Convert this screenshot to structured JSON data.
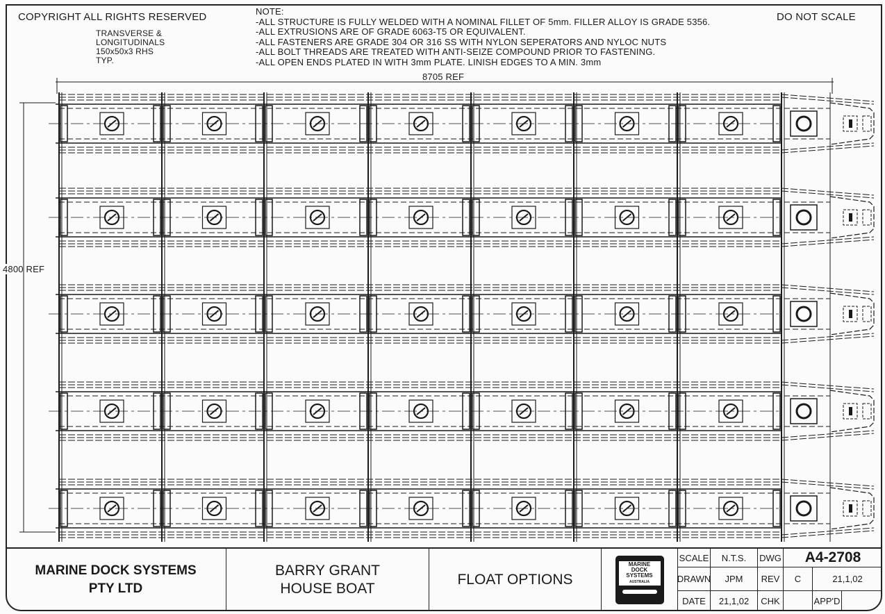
{
  "header": {
    "copyright": "COPYRIGHT ALL RIGHTS RESERVED",
    "scale_note": "DO NOT SCALE",
    "member_note": [
      "TRANSVERSE &",
      "LONGITUDINALS",
      "150x50x3 RHS",
      "TYP."
    ]
  },
  "notes": {
    "heading": "NOTE:",
    "items": [
      "-ALL STRUCTURE IS FULLY WELDED WITH A NOMINAL FILLET OF 5mm. FILLER ALLOY IS GRADE 5356.",
      "-ALL EXTRUSIONS ARE OF GRADE 6063-T5 OR EQUIVALENT.",
      "-ALL FASTENERS ARE GRADE 304 OR 316 SS WITH NYLON SEPERATORS AND NYLOC NUTS",
      "-ALL BOLT THREADS ARE TREATED WITH ANTI-SEIZE COMPOUND PRIOR TO FASTENING.",
      "-ALL OPEN ENDS PLATED IN WITH 3mm PLATE. LINISH EDGES TO A MIN. 3mm"
    ]
  },
  "dimensions": {
    "length": "8705 REF",
    "width": "4800 REF"
  },
  "title_block": {
    "company": [
      "MARINE DOCK SYSTEMS",
      "PTY LTD"
    ],
    "client": [
      "BARRY GRANT",
      "HOUSE BOAT"
    ],
    "title": "FLOAT OPTIONS",
    "logo": [
      "MARINE",
      "DOCK",
      "SYSTEMS",
      "AUSTRALIA"
    ],
    "scale_label": "SCALE",
    "scale": "N.T.S.",
    "drawn_label": "DRAWN",
    "drawn": "JPM",
    "date_label": "DATE",
    "date": "21,1,02",
    "dwg_label": "DWG",
    "dwg": "A4-2708",
    "rev_label": "REV",
    "rev": "C",
    "rev_date": "21,1,02",
    "chk_label": "CHK",
    "chk": "",
    "appd_label": "APP'D",
    "appd": ""
  },
  "colors": {
    "ink": "#1a1a1a",
    "paper": "#fbfbfb"
  }
}
